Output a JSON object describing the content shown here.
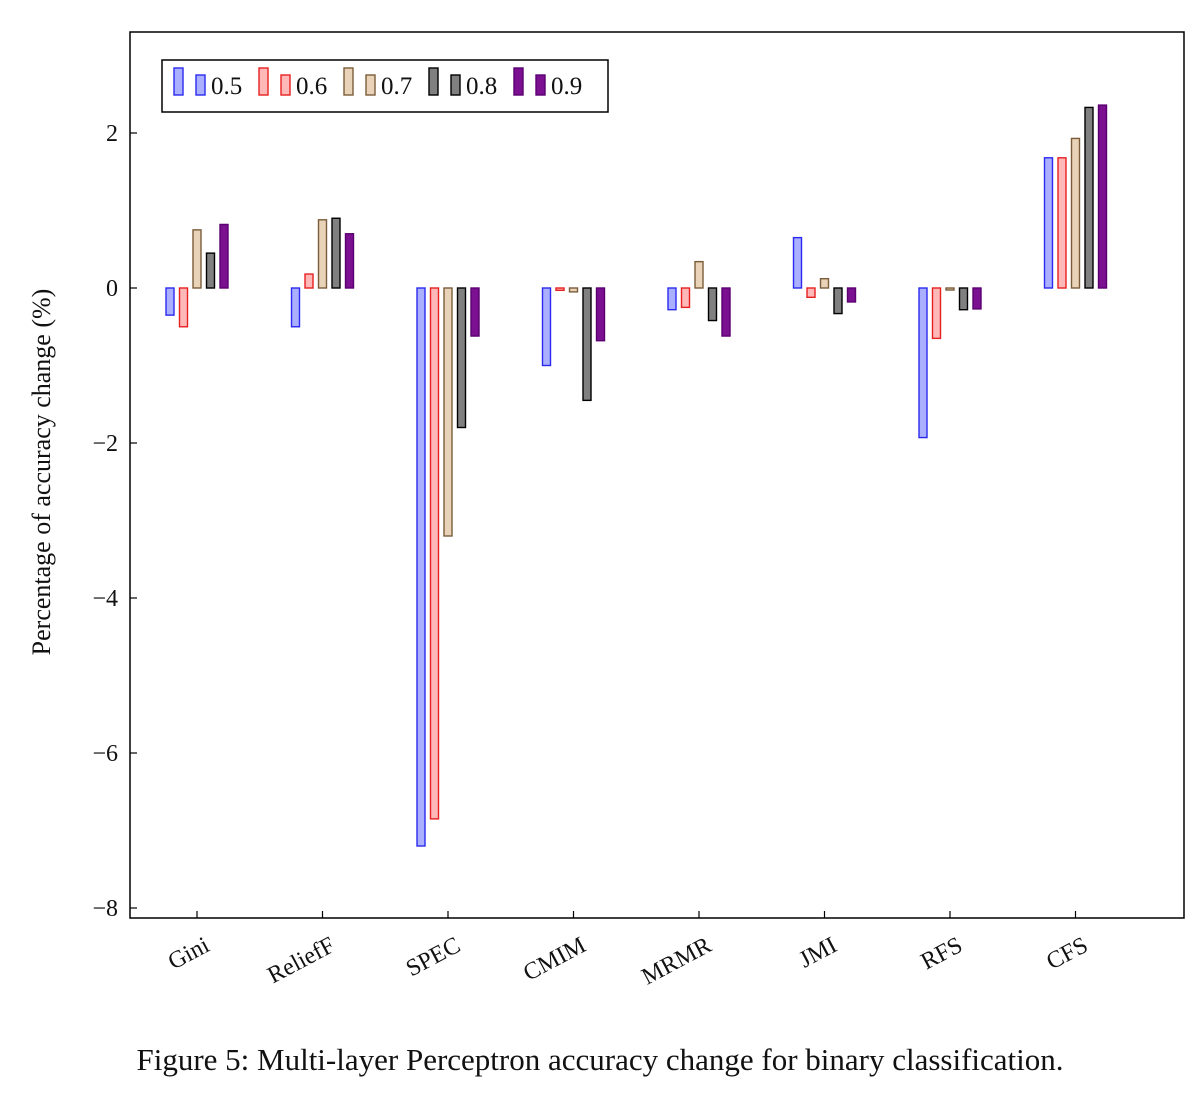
{
  "chart_data": {
    "type": "bar",
    "title": "",
    "xlabel": "",
    "ylabel": "Percentage of accuracy change (%)",
    "ylim": [
      -8,
      3.3
    ],
    "yticks": [
      2,
      0,
      -2,
      -4,
      -6,
      -8
    ],
    "ytick_labels": [
      "2",
      "0",
      "−2",
      "−4",
      "−6",
      "−8"
    ],
    "grid": false,
    "legend_position": "top-left",
    "categories": [
      "Gini",
      "ReliefF",
      "SPEC",
      "CMIM",
      "MRMR",
      "JMI",
      "RFS",
      "CFS"
    ],
    "series": [
      {
        "name": "0.5",
        "stroke": "#2a2af0",
        "fill": "#aab0ff",
        "values": [
          -0.35,
          -0.5,
          -7.2,
          -1.0,
          -0.28,
          0.65,
          -1.93,
          1.68
        ]
      },
      {
        "name": "0.6",
        "stroke": "#e62020",
        "fill": "#ffb8b8",
        "values": [
          -0.5,
          0.18,
          -6.85,
          -0.03,
          -0.25,
          -0.12,
          -0.65,
          1.68
        ]
      },
      {
        "name": "0.7",
        "stroke": "#7a5c3a",
        "fill": "#e8d2b8",
        "values": [
          0.75,
          0.88,
          -3.2,
          -0.05,
          0.34,
          0.12,
          -0.02,
          1.93
        ]
      },
      {
        "name": "0.8",
        "stroke": "#000000",
        "fill": "#808080",
        "values": [
          0.45,
          0.9,
          -1.8,
          -1.45,
          -0.42,
          -0.33,
          -0.28,
          2.33
        ]
      },
      {
        "name": "0.9",
        "stroke": "#5a0070",
        "fill": "#7b1090",
        "values": [
          0.82,
          0.7,
          -0.62,
          -0.68,
          -0.62,
          -0.18,
          -0.27,
          2.36
        ]
      }
    ]
  },
  "caption": "Figure 5: Multi-layer Perceptron accuracy change for binary classification."
}
